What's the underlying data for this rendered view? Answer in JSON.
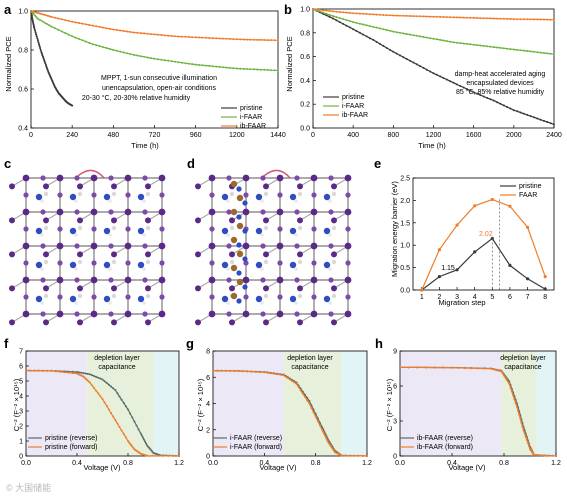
{
  "panels": {
    "a": {
      "letter": "a",
      "ylabel": "Normalized PCE",
      "xlabel": "Time (h)",
      "annotation": [
        "MPPT, 1-sun consecutive illumination",
        "unencapsulation, open-air conditions",
        "20-30 °C, 20-30% relative humidity"
      ],
      "legend": [
        "pristine",
        "i-FAAR",
        "ib-FAAR"
      ]
    },
    "b": {
      "letter": "b",
      "ylabel": "Normalized PCE",
      "xlabel": "Time (h)",
      "annotation": [
        "damp-heat accelerated aging",
        "encapsulated devices",
        "85 °C, 85% relative humidity"
      ],
      "legend": [
        "pristine",
        "i-FAAR",
        "ib-FAAR"
      ]
    },
    "c": {
      "letter": "c"
    },
    "d": {
      "letter": "d"
    },
    "e": {
      "letter": "e",
      "ylabel": "Migration energy barrier (eV)",
      "xlabel": "Migration step",
      "legend": [
        "pristine",
        "FAAR"
      ],
      "value_labels": [
        "1.15",
        "2.02"
      ]
    },
    "f": {
      "letter": "f",
      "ylabel": "C⁻² (F⁻² × 10¹⁵)",
      "xlabel": "Voltage (V)",
      "region_label": [
        "depletion layer",
        "capacitance"
      ],
      "legend": [
        "pristine (reverse)",
        "pristine (forward)"
      ]
    },
    "g": {
      "letter": "g",
      "ylabel": "C⁻² (F⁻² × 10¹⁵)",
      "xlabel": "Voltage (V)",
      "region_label": [
        "depletion layer",
        "capacitance"
      ],
      "legend": [
        "i-FAAR (reverse)",
        "i-FAAR (forward)"
      ]
    },
    "h": {
      "letter": "h",
      "ylabel": "C⁻² (F⁻² × 10¹⁵)",
      "xlabel": "Voltage (V)",
      "region_label": [
        "depletion layer",
        "capacitance"
      ],
      "legend": [
        "ib-FAAR (reverse)",
        "ib-FAAR (forward)"
      ]
    }
  },
  "watermark": "© 大国储能",
  "colors": {
    "pristine": "#3a3a3a",
    "i_faar": "#6fb43f",
    "ib_faar": "#ef7d2c",
    "faar": "#ef7d2c",
    "reverse": "#5a6b6b",
    "forward": "#ef7d2c",
    "region_purple": "#ece8f6",
    "region_green": "#e6f0da",
    "region_cyan": "#e2f4f6",
    "atom_purple": "#5b2a86",
    "atom_blue": "#2f4cc4",
    "atom_brown": "#9a6a2a"
  },
  "chart_data": [
    {
      "panel": "a",
      "type": "line",
      "xlabel": "Time (h)",
      "ylabel": "Normalized PCE",
      "xlim": [
        0,
        1440
      ],
      "ylim": [
        0.4,
        1.0
      ],
      "xticks": [
        0,
        240,
        480,
        720,
        960,
        1200,
        1440
      ],
      "yticks": [
        0.4,
        0.6,
        0.8,
        1.0
      ],
      "series": [
        {
          "name": "pristine",
          "x": [
            0,
            10,
            20,
            40,
            60,
            80,
            100,
            120,
            140,
            160,
            180,
            200,
            220,
            240
          ],
          "y": [
            1.0,
            0.95,
            0.91,
            0.85,
            0.79,
            0.74,
            0.69,
            0.65,
            0.61,
            0.58,
            0.56,
            0.54,
            0.525,
            0.515
          ]
        },
        {
          "name": "i-FAAR",
          "x": [
            0,
            40,
            120,
            240,
            360,
            480,
            600,
            720,
            840,
            960,
            1080,
            1200,
            1320,
            1440
          ],
          "y": [
            1.0,
            0.96,
            0.92,
            0.87,
            0.83,
            0.8,
            0.775,
            0.755,
            0.74,
            0.725,
            0.715,
            0.705,
            0.7,
            0.695
          ]
        },
        {
          "name": "ib-FAAR",
          "x": [
            0,
            60,
            120,
            240,
            360,
            480,
            600,
            720,
            840,
            960,
            1080,
            1200,
            1320,
            1440
          ],
          "y": [
            1.0,
            0.985,
            0.97,
            0.945,
            0.925,
            0.905,
            0.89,
            0.88,
            0.87,
            0.865,
            0.86,
            0.855,
            0.852,
            0.85
          ]
        }
      ]
    },
    {
      "panel": "b",
      "type": "line",
      "xlabel": "Time (h)",
      "ylabel": "Normalized PCE",
      "xlim": [
        0,
        2400
      ],
      "ylim": [
        0.0,
        1.0
      ],
      "xticks": [
        0,
        400,
        800,
        1200,
        1600,
        2000,
        2400
      ],
      "yticks": [
        0.0,
        0.2,
        0.4,
        0.6,
        0.8,
        1.0
      ],
      "series": [
        {
          "name": "pristine",
          "x": [
            0,
            200,
            400,
            600,
            800,
            1000,
            1200,
            1400,
            1600,
            1800,
            2000,
            2200,
            2400
          ],
          "y": [
            1.0,
            0.92,
            0.83,
            0.74,
            0.64,
            0.55,
            0.46,
            0.38,
            0.3,
            0.23,
            0.15,
            0.09,
            0.03
          ]
        },
        {
          "name": "i-FAAR",
          "x": [
            0,
            200,
            400,
            600,
            800,
            1000,
            1200,
            1400,
            1600,
            1800,
            2000,
            2200,
            2400
          ],
          "y": [
            1.0,
            0.94,
            0.89,
            0.85,
            0.81,
            0.78,
            0.75,
            0.72,
            0.7,
            0.68,
            0.66,
            0.64,
            0.62
          ]
        },
        {
          "name": "ib-FAAR",
          "x": [
            0,
            200,
            400,
            600,
            800,
            1000,
            1200,
            1400,
            1600,
            1800,
            2000,
            2200,
            2400
          ],
          "y": [
            1.0,
            0.98,
            0.965,
            0.955,
            0.945,
            0.94,
            0.935,
            0.93,
            0.925,
            0.92,
            0.915,
            0.913,
            0.91
          ]
        }
      ]
    },
    {
      "panel": "e",
      "type": "line",
      "xlabel": "Migration step",
      "ylabel": "Migration energy barrier (eV)",
      "xlim": [
        0.5,
        8.5
      ],
      "ylim": [
        0.0,
        2.5
      ],
      "xticks": [
        1,
        2,
        3,
        4,
        5,
        6,
        7,
        8
      ],
      "yticks": [
        0.0,
        0.5,
        1.0,
        1.5,
        2.0,
        2.5
      ],
      "series": [
        {
          "name": "pristine",
          "x": [
            1,
            2,
            3,
            4,
            5,
            6,
            7,
            8
          ],
          "y": [
            0.0,
            0.3,
            0.45,
            0.85,
            1.15,
            0.55,
            0.25,
            0.02
          ]
        },
        {
          "name": "FAAR",
          "x": [
            1,
            2,
            3,
            4,
            5,
            6,
            7,
            8
          ],
          "y": [
            0.0,
            0.9,
            1.45,
            1.88,
            2.02,
            1.87,
            1.4,
            0.3
          ]
        }
      ]
    },
    {
      "panel": "f",
      "type": "line",
      "xlabel": "Voltage (V)",
      "ylabel": "C⁻² (F⁻² × 10¹⁵)",
      "xlim": [
        0.0,
        1.2
      ],
      "ylim": [
        0,
        7
      ],
      "xticks": [
        0.0,
        0.4,
        0.8,
        1.2
      ],
      "yticks": [
        0,
        1,
        2,
        3,
        4,
        5,
        6,
        7
      ],
      "regions": [
        0.0,
        0.48,
        1.0,
        1.2
      ],
      "series": [
        {
          "name": "pristine (reverse)",
          "x": [
            0,
            0.2,
            0.4,
            0.5,
            0.6,
            0.7,
            0.8,
            0.9,
            0.95,
            1.0,
            1.05,
            1.2
          ],
          "y": [
            5.7,
            5.68,
            5.6,
            5.45,
            5.1,
            4.4,
            3.1,
            1.5,
            0.7,
            0.2,
            0.05,
            0.0
          ]
        },
        {
          "name": "pristine (forward)",
          "x": [
            0,
            0.2,
            0.4,
            0.45,
            0.5,
            0.6,
            0.7,
            0.8,
            0.85,
            0.9,
            0.95,
            1.2
          ],
          "y": [
            5.7,
            5.67,
            5.5,
            5.3,
            4.9,
            3.8,
            2.4,
            1.0,
            0.45,
            0.15,
            0.02,
            0.0
          ]
        }
      ]
    },
    {
      "panel": "g",
      "type": "line",
      "xlabel": "Voltage (V)",
      "ylabel": "C⁻² (F⁻² × 10¹⁵)",
      "xlim": [
        0.0,
        1.2
      ],
      "ylim": [
        0,
        8
      ],
      "xticks": [
        0.0,
        0.4,
        0.8,
        1.2
      ],
      "yticks": [
        0,
        2,
        4,
        6,
        8
      ],
      "regions": [
        0.0,
        0.55,
        1.0,
        1.2
      ],
      "series": [
        {
          "name": "i-FAAR (reverse)",
          "x": [
            0,
            0.2,
            0.4,
            0.55,
            0.65,
            0.75,
            0.85,
            0.9,
            0.95,
            1.0,
            1.2
          ],
          "y": [
            6.5,
            6.48,
            6.4,
            6.2,
            5.6,
            4.2,
            2.2,
            1.2,
            0.4,
            0.05,
            0.0
          ]
        },
        {
          "name": "i-FAAR (forward)",
          "x": [
            0,
            0.2,
            0.4,
            0.55,
            0.65,
            0.75,
            0.85,
            0.9,
            0.95,
            1.0,
            1.2
          ],
          "y": [
            6.5,
            6.47,
            6.38,
            6.15,
            5.5,
            4.0,
            2.0,
            1.0,
            0.3,
            0.03,
            0.0
          ]
        }
      ]
    },
    {
      "panel": "h",
      "type": "line",
      "xlabel": "Voltage (V)",
      "ylabel": "C⁻² (F⁻² × 10¹⁵)",
      "xlim": [
        0.0,
        1.2
      ],
      "ylim": [
        0,
        9
      ],
      "xticks": [
        0.0,
        0.4,
        0.8,
        1.2
      ],
      "yticks": [
        0,
        3,
        6,
        9
      ],
      "regions": [
        0.0,
        0.78,
        1.05,
        1.2
      ],
      "series": [
        {
          "name": "ib-FAAR (reverse)",
          "x": [
            0,
            0.4,
            0.7,
            0.78,
            0.84,
            0.9,
            0.95,
            1.0,
            1.03,
            1.2
          ],
          "y": [
            7.6,
            7.58,
            7.5,
            7.3,
            6.4,
            4.5,
            2.5,
            0.8,
            0.1,
            0.0
          ]
        },
        {
          "name": "ib-FAAR (forward)",
          "x": [
            0,
            0.4,
            0.7,
            0.78,
            0.84,
            0.9,
            0.95,
            1.0,
            1.03,
            1.2
          ],
          "y": [
            7.6,
            7.57,
            7.48,
            7.25,
            6.2,
            4.2,
            2.2,
            0.6,
            0.08,
            0.0
          ]
        }
      ]
    }
  ]
}
